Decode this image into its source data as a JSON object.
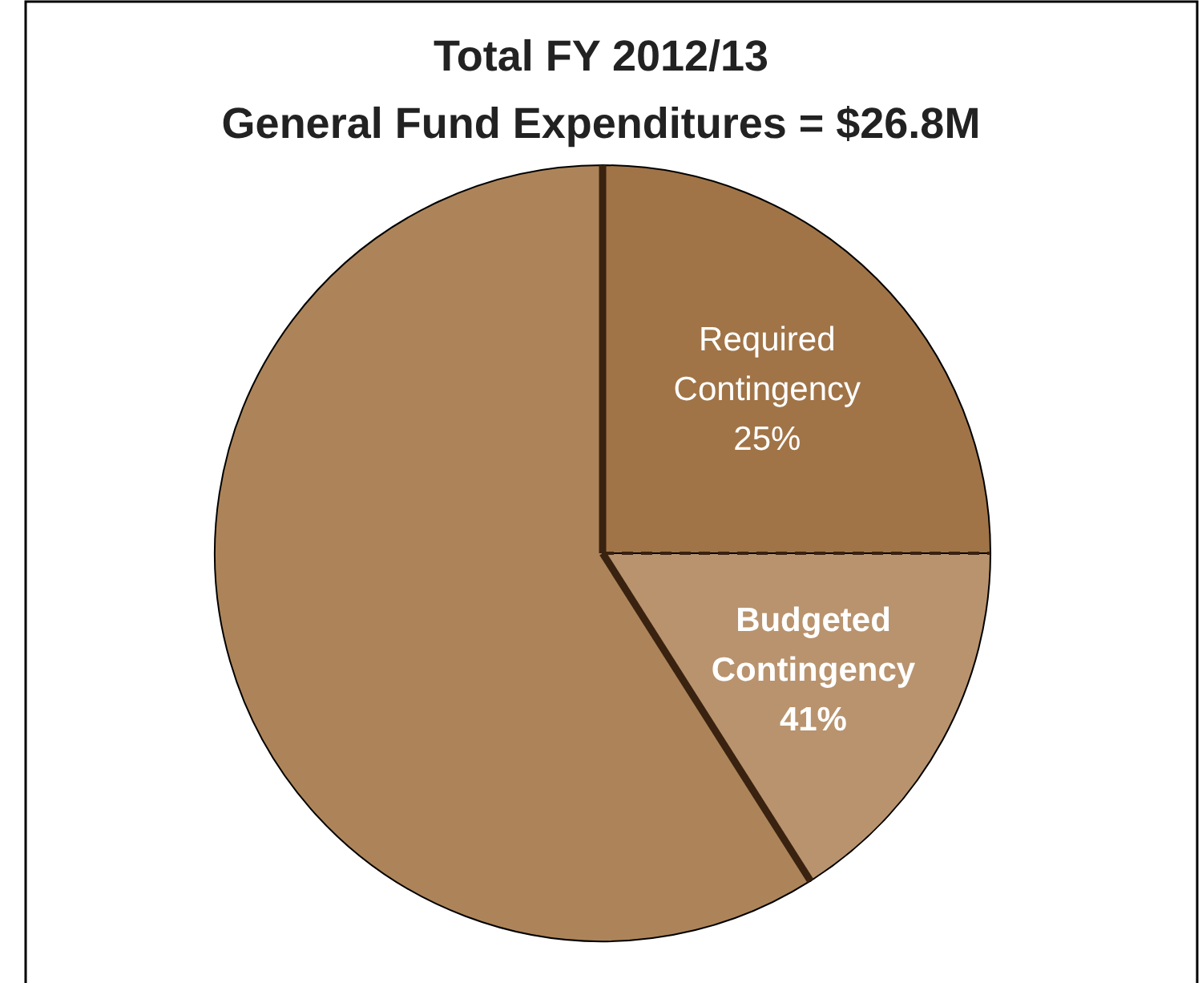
{
  "chart_data": {
    "type": "pie",
    "title": "Total FY 2012/13",
    "subtitle": "General Fund Expenditures = $26.8M",
    "categories": [
      "Required Contingency",
      null,
      null
    ],
    "values": [
      25,
      16,
      59
    ],
    "value_labels": [
      "25%",
      null,
      null
    ],
    "colors": [
      "#a07447",
      "#b8936e",
      "#ad8459"
    ],
    "annotations": [
      "Budgeted Contingency 41%"
    ]
  }
}
